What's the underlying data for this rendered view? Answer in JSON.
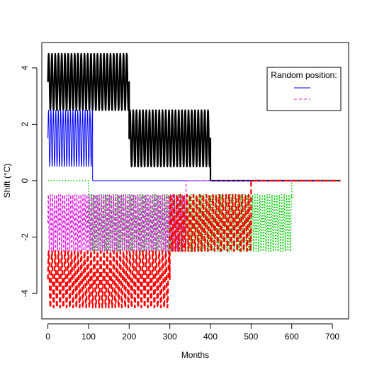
{
  "chart_data": {
    "type": "line",
    "title": "",
    "xlabel": "Months",
    "ylabel": "Shift (°C)",
    "xlim": [
      -15,
      740
    ],
    "ylim": [
      -4.9,
      4.9
    ],
    "x_ticks": [
      0,
      100,
      200,
      300,
      400,
      500,
      600,
      700
    ],
    "y_ticks": [
      -4,
      -2,
      0,
      2,
      4
    ],
    "grid": false,
    "legend": {
      "title": "Random position:",
      "placement": "top-right",
      "entries": [
        {
          "label": "",
          "color": "#0000FF",
          "dash": "solid"
        },
        {
          "label": "",
          "color": "#DD22DD",
          "dash": "dashed"
        }
      ]
    },
    "series": [
      {
        "color": "#000000",
        "dash": "solid",
        "width": 2.2,
        "segments": [
          {
            "from": 0,
            "to": 200,
            "base": 3.5,
            "amp": 1.0,
            "period": 8
          },
          {
            "from": 200,
            "to": 400,
            "base": 1.5,
            "amp": 1.0,
            "period": 8
          },
          {
            "from": 400,
            "to": 720,
            "base": 0,
            "amp": 0,
            "period": 8
          }
        ]
      },
      {
        "color": "#0000FF",
        "dash": "solid",
        "width": 1,
        "segments": [
          {
            "from": 0,
            "to": 110,
            "base": 1.5,
            "amp": 1.0,
            "period": 6
          },
          {
            "from": 110,
            "to": 720,
            "base": 0,
            "amp": 0,
            "period": 6
          }
        ]
      },
      {
        "color": "#00CC00",
        "dash": "dotted",
        "width": 1.6,
        "segments": [
          {
            "from": 0,
            "to": 100,
            "base": 0,
            "amp": 0,
            "period": 6
          },
          {
            "from": 100,
            "to": 600,
            "base": -1.5,
            "amp": 1.0,
            "period": 6
          },
          {
            "from": 600,
            "to": 720,
            "base": 0,
            "amp": 0,
            "period": 6
          }
        ]
      },
      {
        "color": "#DD22DD",
        "dash": "dashed",
        "width": 1.3,
        "segments": [
          {
            "from": 0,
            "to": 340,
            "base": -1.5,
            "amp": 1.0,
            "period": 5
          },
          {
            "from": 340,
            "to": 720,
            "base": 0,
            "amp": 0,
            "period": 5
          }
        ]
      },
      {
        "color": "#FF0000",
        "dash": "longdash",
        "width": 2.2,
        "segments": [
          {
            "from": 0,
            "to": 300,
            "base": -3.5,
            "amp": 1.0,
            "period": 8
          },
          {
            "from": 300,
            "to": 500,
            "base": -1.5,
            "amp": 1.0,
            "period": 8
          },
          {
            "from": 500,
            "to": 720,
            "base": 0,
            "amp": 0,
            "period": 8
          }
        ]
      }
    ]
  }
}
